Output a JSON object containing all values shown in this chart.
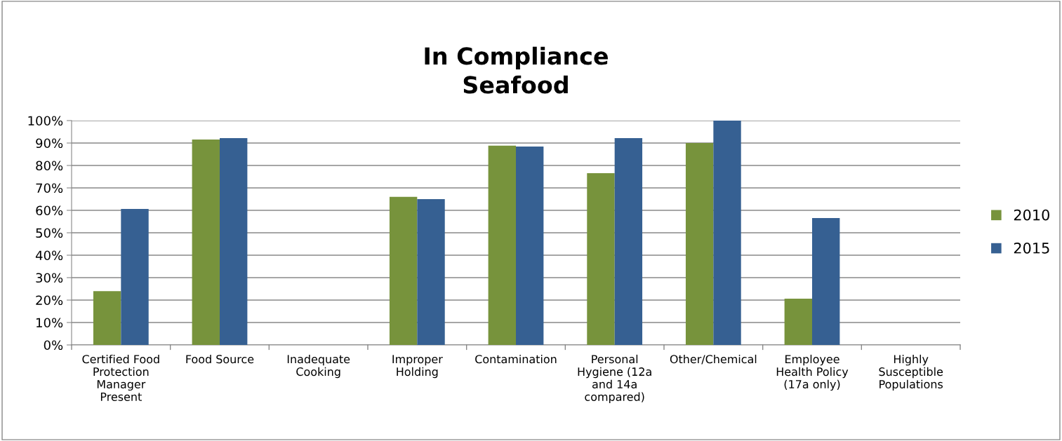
{
  "chart_data": {
    "type": "bar",
    "title": "In Compliance\nSeafood",
    "categories": [
      "Certified Food\nProtection\nManager\nPresent",
      "Food Source",
      "Inadequate\nCooking",
      "Improper\nHolding",
      "Contamination",
      "Personal\nHygiene (12a\nand 14a\ncompared)",
      "Other/Chemical",
      "Employee\nHealth Policy\n(17a only)",
      "Highly\nSusceptible\nPopulations"
    ],
    "series": [
      {
        "name": "2010",
        "color": "#77933c",
        "values": [
          24,
          91.6,
          null,
          66,
          88.8,
          76.6,
          90,
          20.6,
          null
        ]
      },
      {
        "name": "2015",
        "color": "#366092",
        "values": [
          60.6,
          92.2,
          null,
          65,
          88.4,
          92.2,
          100,
          56.6,
          null
        ]
      }
    ],
    "ylim": [
      0,
      100
    ],
    "yticks": [
      {
        "value": 0,
        "label": "0%"
      },
      {
        "value": 10,
        "label": "10%"
      },
      {
        "value": 20,
        "label": "20%"
      },
      {
        "value": 30,
        "label": "30%"
      },
      {
        "value": 40,
        "label": "40%"
      },
      {
        "value": 50,
        "label": "50%"
      },
      {
        "value": 60,
        "label": "60%"
      },
      {
        "value": 70,
        "label": "70%"
      },
      {
        "value": 80,
        "label": "80%"
      },
      {
        "value": 90,
        "label": "90%"
      },
      {
        "value": 100,
        "label": "100%"
      }
    ],
    "grid": "y",
    "legend": "right"
  }
}
